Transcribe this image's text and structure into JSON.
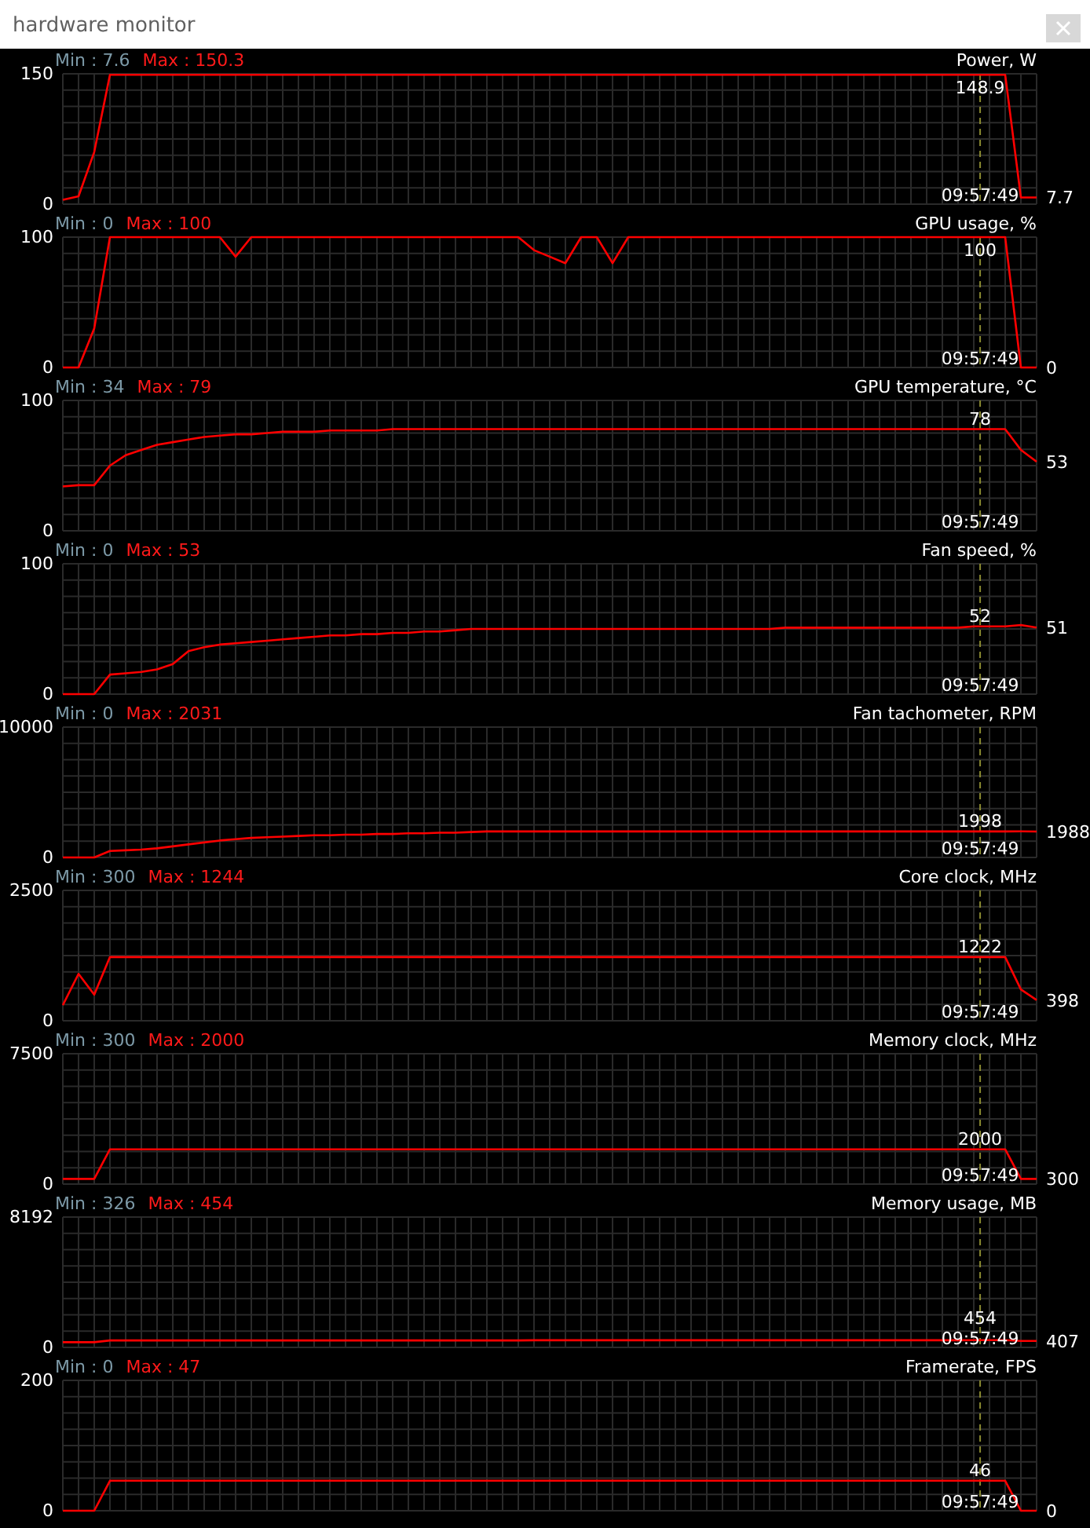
{
  "chart_data": [
    {
      "type": "other",
      "title": "hardware monitor"
    },
    {
      "type": "line",
      "title": "Power, W",
      "annotations": [
        "Min : 7.6",
        "Max : 150.3",
        {
          "text": "148.9",
          "y": 148.9
        },
        "09:57:49",
        "7.7"
      ],
      "categories": [
        null,
        null,
        null,
        null,
        null,
        null,
        null,
        null,
        null,
        null,
        null,
        null,
        null,
        null,
        null,
        null,
        null,
        null,
        null,
        null,
        null,
        null,
        null,
        null,
        null,
        null,
        null,
        null,
        null,
        null,
        null,
        null,
        null,
        null,
        null,
        null,
        null,
        null,
        null,
        null,
        null,
        null,
        null,
        null,
        null,
        null,
        null,
        null,
        null,
        null,
        null,
        null,
        null,
        null,
        null,
        null,
        null,
        null,
        null,
        null,
        null,
        null,
        null
      ],
      "values": [
        5,
        9,
        60,
        148.9,
        148.9,
        148.9,
        148.9,
        148.9,
        148.9,
        148.9,
        148.9,
        148.9,
        148.9,
        148.9,
        148.9,
        148.9,
        148.9,
        148.9,
        148.9,
        148.9,
        148.9,
        148.9,
        148.9,
        148.9,
        148.9,
        148.9,
        148.9,
        148.9,
        148.9,
        148.9,
        148.9,
        148.9,
        148.9,
        148.9,
        148.9,
        148.9,
        148.9,
        148.9,
        148.9,
        148.9,
        148.9,
        148.9,
        148.9,
        148.9,
        148.9,
        148.9,
        148.9,
        148.9,
        148.9,
        148.9,
        148.9,
        148.9,
        148.9,
        148.9,
        148.9,
        148.9,
        148.9,
        148.9,
        148.9,
        148.9,
        148.9,
        7.7,
        7.7
      ],
      "color": "#ff0000",
      "ylim": [
        0,
        150
      ],
      "yticks": [
        0,
        {
          "value": 18.75,
          "label": null
        },
        {
          "value": 37.5,
          "label": null
        },
        {
          "value": 56.25,
          "label": null
        },
        {
          "value": 75,
          "label": null
        },
        {
          "value": 93.75,
          "label": null
        },
        {
          "value": 112.5,
          "label": null
        },
        {
          "value": 131.25,
          "label": null
        },
        150
      ],
      "tick_labels": "y",
      "grid": true
    },
    {
      "type": "line",
      "title": "GPU usage, %",
      "annotations": [
        "Min : 0",
        "Max : 100",
        {
          "text": "100",
          "y": 100
        },
        "09:57:49",
        "0"
      ],
      "categories": [
        null,
        null,
        null,
        null,
        null,
        null,
        null,
        null,
        null,
        null,
        null,
        null,
        null,
        null,
        null,
        null,
        null,
        null,
        null,
        null,
        null,
        null,
        null,
        null,
        null,
        null,
        null,
        null,
        null,
        null,
        null,
        null,
        null,
        null,
        null,
        null,
        null,
        null,
        null,
        null,
        null,
        null,
        null,
        null,
        null,
        null,
        null,
        null,
        null,
        null,
        null,
        null,
        null,
        null,
        null,
        null,
        null,
        null,
        null,
        null,
        null,
        null,
        null
      ],
      "values": [
        0,
        0,
        30,
        100,
        100,
        100,
        100,
        100,
        100,
        100,
        100,
        85,
        100,
        100,
        100,
        100,
        100,
        100,
        100,
        100,
        100,
        100,
        100,
        100,
        100,
        100,
        100,
        100,
        100,
        100,
        90,
        85,
        80,
        100,
        100,
        80,
        100,
        100,
        100,
        100,
        100,
        100,
        100,
        100,
        100,
        100,
        100,
        100,
        100,
        100,
        100,
        100,
        100,
        100,
        100,
        100,
        100,
        100,
        100,
        100,
        100,
        0,
        0
      ],
      "color": "#ff0000",
      "ylim": [
        0,
        100
      ],
      "yticks": [
        0,
        {
          "value": 12.5,
          "label": null
        },
        {
          "value": 25,
          "label": null
        },
        {
          "value": 37.5,
          "label": null
        },
        {
          "value": 50,
          "label": null
        },
        {
          "value": 62.5,
          "label": null
        },
        {
          "value": 75,
          "label": null
        },
        {
          "value": 87.5,
          "label": null
        },
        100
      ],
      "tick_labels": "y",
      "grid": true
    },
    {
      "type": "line",
      "title": "GPU temperature, °C",
      "annotations": [
        "Min : 34",
        "Max : 79",
        {
          "text": "78",
          "y": 78
        },
        "09:57:49",
        "53"
      ],
      "categories": [
        null,
        null,
        null,
        null,
        null,
        null,
        null,
        null,
        null,
        null,
        null,
        null,
        null,
        null,
        null,
        null,
        null,
        null,
        null,
        null,
        null,
        null,
        null,
        null,
        null,
        null,
        null,
        null,
        null,
        null,
        null,
        null,
        null,
        null,
        null,
        null,
        null,
        null,
        null,
        null,
        null,
        null,
        null,
        null,
        null,
        null,
        null,
        null,
        null,
        null,
        null,
        null,
        null,
        null,
        null,
        null,
        null,
        null,
        null,
        null,
        null,
        null,
        null
      ],
      "values": [
        34,
        35,
        35,
        50,
        58,
        62,
        66,
        68,
        70,
        72,
        73,
        74,
        74,
        75,
        76,
        76,
        76,
        77,
        77,
        77,
        77,
        78,
        78,
        78,
        78,
        78,
        78,
        78,
        78,
        78,
        78,
        78,
        78,
        78,
        78,
        78,
        78,
        78,
        78,
        78,
        78,
        78,
        78,
        78,
        78,
        78,
        78,
        78,
        78,
        78,
        78,
        78,
        78,
        78,
        78,
        78,
        78,
        78,
        78,
        78,
        78,
        62,
        53
      ],
      "color": "#ff0000",
      "ylim": [
        0,
        100
      ],
      "yticks": [
        0,
        {
          "value": 12.5,
          "label": null
        },
        {
          "value": 25,
          "label": null
        },
        {
          "value": 37.5,
          "label": null
        },
        {
          "value": 50,
          "label": null
        },
        {
          "value": 62.5,
          "label": null
        },
        {
          "value": 75,
          "label": null
        },
        {
          "value": 87.5,
          "label": null
        },
        100
      ],
      "tick_labels": "y",
      "grid": true
    },
    {
      "type": "line",
      "title": "Fan speed, %",
      "annotations": [
        "Min : 0",
        "Max : 53",
        {
          "text": "52",
          "y": 52
        },
        "09:57:49",
        "51"
      ],
      "categories": [
        null,
        null,
        null,
        null,
        null,
        null,
        null,
        null,
        null,
        null,
        null,
        null,
        null,
        null,
        null,
        null,
        null,
        null,
        null,
        null,
        null,
        null,
        null,
        null,
        null,
        null,
        null,
        null,
        null,
        null,
        null,
        null,
        null,
        null,
        null,
        null,
        null,
        null,
        null,
        null,
        null,
        null,
        null,
        null,
        null,
        null,
        null,
        null,
        null,
        null,
        null,
        null,
        null,
        null,
        null,
        null,
        null,
        null,
        null,
        null,
        null,
        null,
        null
      ],
      "values": [
        0,
        0,
        0,
        15,
        16,
        17,
        19,
        23,
        33,
        36,
        38,
        39,
        40,
        41,
        42,
        43,
        44,
        45,
        45,
        46,
        46,
        47,
        47,
        48,
        48,
        49,
        50,
        50,
        50,
        50,
        50,
        50,
        50,
        50,
        50,
        50,
        50,
        50,
        50,
        50,
        50,
        50,
        50,
        50,
        50,
        50,
        51,
        51,
        51,
        51,
        51,
        51,
        51,
        51,
        51,
        51,
        51,
        51,
        52,
        52,
        52,
        53,
        51
      ],
      "color": "#ff0000",
      "ylim": [
        0,
        100
      ],
      "yticks": [
        0,
        {
          "value": 12.5,
          "label": null
        },
        {
          "value": 25,
          "label": null
        },
        {
          "value": 37.5,
          "label": null
        },
        {
          "value": 50,
          "label": null
        },
        {
          "value": 62.5,
          "label": null
        },
        {
          "value": 75,
          "label": null
        },
        {
          "value": 87.5,
          "label": null
        },
        100
      ],
      "tick_labels": "y",
      "grid": true
    },
    {
      "type": "line",
      "title": "Fan tachometer, RPM",
      "annotations": [
        "Min : 0",
        "Max : 2031",
        {
          "text": "1998",
          "y": 1998
        },
        "09:57:49",
        "1988"
      ],
      "categories": [
        null,
        null,
        null,
        null,
        null,
        null,
        null,
        null,
        null,
        null,
        null,
        null,
        null,
        null,
        null,
        null,
        null,
        null,
        null,
        null,
        null,
        null,
        null,
        null,
        null,
        null,
        null,
        null,
        null,
        null,
        null,
        null,
        null,
        null,
        null,
        null,
        null,
        null,
        null,
        null,
        null,
        null,
        null,
        null,
        null,
        null,
        null,
        null,
        null,
        null,
        null,
        null,
        null,
        null,
        null,
        null,
        null,
        null,
        null,
        null,
        null,
        null,
        null
      ],
      "values": [
        0,
        0,
        0,
        500,
        550,
        600,
        700,
        850,
        1000,
        1150,
        1300,
        1400,
        1500,
        1550,
        1600,
        1650,
        1700,
        1700,
        1750,
        1750,
        1800,
        1800,
        1850,
        1850,
        1900,
        1900,
        1950,
        1998,
        1998,
        1998,
        1998,
        1998,
        1998,
        1998,
        1998,
        1998,
        1998,
        1998,
        1998,
        1998,
        1998,
        1998,
        1998,
        1998,
        1998,
        1998,
        1998,
        1998,
        1998,
        1998,
        1998,
        1998,
        1998,
        1998,
        1998,
        1998,
        1998,
        1998,
        1998,
        1998,
        1998,
        2000,
        1988
      ],
      "color": "#ff0000",
      "ylim": [
        0,
        10000
      ],
      "yticks": [
        0,
        {
          "value": 1250,
          "label": null
        },
        {
          "value": 2500,
          "label": null
        },
        {
          "value": 3750,
          "label": null
        },
        {
          "value": 5000,
          "label": null
        },
        {
          "value": 6250,
          "label": null
        },
        {
          "value": 7500,
          "label": null
        },
        {
          "value": 8750,
          "label": null
        },
        10000
      ],
      "tick_labels": "y",
      "grid": true
    },
    {
      "type": "line",
      "title": "Core clock, MHz",
      "annotations": [
        "Min : 300",
        "Max : 1244",
        {
          "text": "1222",
          "y": 1222
        },
        "09:57:49",
        "398"
      ],
      "categories": [
        null,
        null,
        null,
        null,
        null,
        null,
        null,
        null,
        null,
        null,
        null,
        null,
        null,
        null,
        null,
        null,
        null,
        null,
        null,
        null,
        null,
        null,
        null,
        null,
        null,
        null,
        null,
        null,
        null,
        null,
        null,
        null,
        null,
        null,
        null,
        null,
        null,
        null,
        null,
        null,
        null,
        null,
        null,
        null,
        null,
        null,
        null,
        null,
        null,
        null,
        null,
        null,
        null,
        null,
        null,
        null,
        null,
        null,
        null,
        null,
        null,
        null,
        null
      ],
      "values": [
        300,
        900,
        500,
        1222,
        1222,
        1222,
        1222,
        1222,
        1222,
        1222,
        1222,
        1222,
        1222,
        1222,
        1222,
        1222,
        1222,
        1222,
        1222,
        1222,
        1222,
        1222,
        1222,
        1222,
        1222,
        1222,
        1222,
        1222,
        1222,
        1222,
        1222,
        1222,
        1222,
        1222,
        1222,
        1222,
        1222,
        1222,
        1222,
        1222,
        1222,
        1222,
        1222,
        1222,
        1222,
        1222,
        1222,
        1222,
        1222,
        1222,
        1222,
        1222,
        1222,
        1222,
        1222,
        1222,
        1222,
        1222,
        1222,
        1222,
        1222,
        600,
        398
      ],
      "color": "#ff0000",
      "ylim": [
        0,
        2500
      ],
      "yticks": [
        0,
        {
          "value": 312.5,
          "label": null
        },
        {
          "value": 625,
          "label": null
        },
        {
          "value": 937.5,
          "label": null
        },
        {
          "value": 1250,
          "label": null
        },
        {
          "value": 1562.5,
          "label": null
        },
        {
          "value": 1875,
          "label": null
        },
        {
          "value": 2187.5,
          "label": null
        },
        2500
      ],
      "tick_labels": "y",
      "grid": true
    },
    {
      "type": "line",
      "title": "Memory clock, MHz",
      "annotations": [
        "Min : 300",
        "Max : 2000",
        {
          "text": "2000",
          "y": 2000
        },
        "09:57:49",
        "300"
      ],
      "categories": [
        null,
        null,
        null,
        null,
        null,
        null,
        null,
        null,
        null,
        null,
        null,
        null,
        null,
        null,
        null,
        null,
        null,
        null,
        null,
        null,
        null,
        null,
        null,
        null,
        null,
        null,
        null,
        null,
        null,
        null,
        null,
        null,
        null,
        null,
        null,
        null,
        null,
        null,
        null,
        null,
        null,
        null,
        null,
        null,
        null,
        null,
        null,
        null,
        null,
        null,
        null,
        null,
        null,
        null,
        null,
        null,
        null,
        null,
        null,
        null,
        null,
        null,
        null
      ],
      "values": [
        300,
        300,
        300,
        2000,
        2000,
        2000,
        2000,
        2000,
        2000,
        2000,
        2000,
        2000,
        2000,
        2000,
        2000,
        2000,
        2000,
        2000,
        2000,
        2000,
        2000,
        2000,
        2000,
        2000,
        2000,
        2000,
        2000,
        2000,
        2000,
        2000,
        2000,
        2000,
        2000,
        2000,
        2000,
        2000,
        2000,
        2000,
        2000,
        2000,
        2000,
        2000,
        2000,
        2000,
        2000,
        2000,
        2000,
        2000,
        2000,
        2000,
        2000,
        2000,
        2000,
        2000,
        2000,
        2000,
        2000,
        2000,
        2000,
        2000,
        2000,
        300,
        300
      ],
      "color": "#ff0000",
      "ylim": [
        0,
        7500
      ],
      "yticks": [
        0,
        {
          "value": 937.5,
          "label": null
        },
        {
          "value": 1875,
          "label": null
        },
        {
          "value": 2812.5,
          "label": null
        },
        {
          "value": 3750,
          "label": null
        },
        {
          "value": 4687.5,
          "label": null
        },
        {
          "value": 5625,
          "label": null
        },
        {
          "value": 6562.5,
          "label": null
        },
        7500
      ],
      "tick_labels": "y",
      "grid": true
    },
    {
      "type": "line",
      "title": "Memory usage, MB",
      "annotations": [
        "Min : 326",
        "Max : 454",
        {
          "text": "454",
          "y": 454
        },
        "09:57:49",
        "407"
      ],
      "categories": [
        null,
        null,
        null,
        null,
        null,
        null,
        null,
        null,
        null,
        null,
        null,
        null,
        null,
        null,
        null,
        null,
        null,
        null,
        null,
        null,
        null,
        null,
        null,
        null,
        null,
        null,
        null,
        null,
        null,
        null,
        null,
        null,
        null,
        null,
        null,
        null,
        null,
        null,
        null,
        null,
        null,
        null,
        null,
        null,
        null,
        null,
        null,
        null,
        null,
        null,
        null,
        null,
        null,
        null,
        null,
        null,
        null,
        null,
        null,
        null,
        null,
        null,
        null
      ],
      "values": [
        326,
        326,
        326,
        440,
        440,
        440,
        440,
        440,
        440,
        440,
        440,
        440,
        440,
        440,
        440,
        440,
        440,
        440,
        440,
        440,
        440,
        440,
        440,
        440,
        440,
        440,
        440,
        440,
        440,
        440,
        450,
        450,
        450,
        450,
        450,
        450,
        450,
        450,
        450,
        450,
        450,
        450,
        450,
        450,
        450,
        450,
        450,
        450,
        450,
        450,
        450,
        450,
        450,
        450,
        450,
        450,
        450,
        450,
        454,
        454,
        454,
        407,
        407
      ],
      "color": "#ff0000",
      "ylim": [
        0,
        8192
      ],
      "yticks": [
        0,
        {
          "value": 1024,
          "label": null
        },
        {
          "value": 2048,
          "label": null
        },
        {
          "value": 3072,
          "label": null
        },
        {
          "value": 4096,
          "label": null
        },
        {
          "value": 5120,
          "label": null
        },
        {
          "value": 6144,
          "label": null
        },
        {
          "value": 7168,
          "label": null
        },
        8192
      ],
      "tick_labels": "y",
      "grid": true
    },
    {
      "type": "line",
      "title": "Framerate, FPS",
      "annotations": [
        "Min : 0",
        "Max : 47",
        {
          "text": "46",
          "y": 46
        },
        "09:57:49",
        "0"
      ],
      "categories": [
        null,
        null,
        null,
        null,
        null,
        null,
        null,
        null,
        null,
        null,
        null,
        null,
        null,
        null,
        null,
        null,
        null,
        null,
        null,
        null,
        null,
        null,
        null,
        null,
        null,
        null,
        null,
        null,
        null,
        null,
        null,
        null,
        null,
        null,
        null,
        null,
        null,
        null,
        null,
        null,
        null,
        null,
        null,
        null,
        null,
        null,
        null,
        null,
        null,
        null,
        null,
        null,
        null,
        null,
        null,
        null,
        null,
        null,
        null,
        null,
        null,
        null,
        null
      ],
      "values": [
        0,
        0,
        0,
        46,
        46,
        46,
        46,
        46,
        46,
        46,
        46,
        46,
        46,
        46,
        46,
        46,
        46,
        46,
        46,
        46,
        46,
        46,
        46,
        46,
        46,
        46,
        46,
        46,
        46,
        46,
        46,
        46,
        46,
        46,
        46,
        46,
        46,
        46,
        46,
        46,
        46,
        46,
        46,
        46,
        46,
        46,
        46,
        46,
        46,
        46,
        46,
        46,
        46,
        46,
        46,
        46,
        46,
        46,
        46,
        46,
        46,
        0,
        0
      ],
      "color": "#ff0000",
      "ylim": [
        0,
        200
      ],
      "yticks": [
        0,
        {
          "value": 25,
          "label": null
        },
        {
          "value": 50,
          "label": null
        },
        {
          "value": 75,
          "label": null
        },
        {
          "value": 100,
          "label": null
        },
        {
          "value": 125,
          "label": null
        },
        {
          "value": 150,
          "label": null
        },
        {
          "value": 175,
          "label": null
        },
        200
      ],
      "tick_labels": "y",
      "grid": true
    }
  ]
}
